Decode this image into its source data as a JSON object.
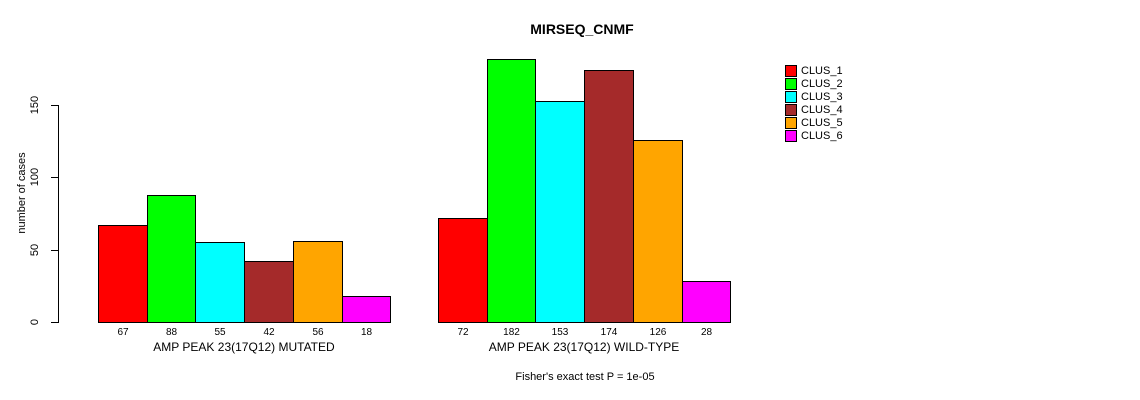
{
  "chart_data": {
    "type": "bar",
    "title": "MIRSEQ_CNMF",
    "ylabel": "number of cases",
    "yticks": [
      0,
      50,
      100,
      150
    ],
    "ylim": [
      0,
      150
    ],
    "grid": false,
    "legend_position": "right",
    "clusters": [
      {
        "name": "CLUS_1",
        "color": "#FF0000"
      },
      {
        "name": "CLUS_2",
        "color": "#00FF00"
      },
      {
        "name": "CLUS_3",
        "color": "#00FFFF"
      },
      {
        "name": "CLUS_4",
        "color": "#A52A2A"
      },
      {
        "name": "CLUS_5",
        "color": "#FFA500"
      },
      {
        "name": "CLUS_6",
        "color": "#FF00FF"
      }
    ],
    "groups": [
      {
        "label": "AMP PEAK 23(17Q12) MUTATED",
        "values": [
          67,
          88,
          55,
          42,
          56,
          18
        ]
      },
      {
        "label": "AMP PEAK 23(17Q12) WILD-TYPE",
        "values": [
          72,
          182,
          153,
          174,
          126,
          28
        ]
      }
    ],
    "footnote": "Fisher's exact test P = 1e-05"
  }
}
